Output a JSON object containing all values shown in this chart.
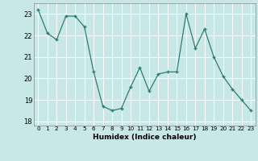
{
  "x": [
    0,
    1,
    2,
    3,
    4,
    5,
    6,
    7,
    8,
    9,
    10,
    11,
    12,
    13,
    14,
    15,
    16,
    17,
    18,
    19,
    20,
    21,
    22,
    23
  ],
  "y": [
    23.2,
    22.1,
    21.8,
    22.9,
    22.9,
    22.4,
    20.3,
    18.7,
    18.5,
    18.6,
    19.6,
    20.5,
    19.4,
    20.2,
    20.3,
    20.3,
    23.0,
    21.4,
    22.3,
    21.0,
    20.1,
    19.5,
    19.0,
    18.5
  ],
  "line_color": "#2e7d6e",
  "marker": "+",
  "bg_color": "#c8e8e8",
  "grid_color": "#b0d8d8",
  "xlabel": "Humidex (Indice chaleur)",
  "ylim": [
    17.8,
    23.5
  ],
  "xlim": [
    -0.5,
    23.5
  ],
  "yticks": [
    18,
    19,
    20,
    21,
    22,
    23
  ],
  "xticks": [
    0,
    1,
    2,
    3,
    4,
    5,
    6,
    7,
    8,
    9,
    10,
    11,
    12,
    13,
    14,
    15,
    16,
    17,
    18,
    19,
    20,
    21,
    22,
    23
  ]
}
